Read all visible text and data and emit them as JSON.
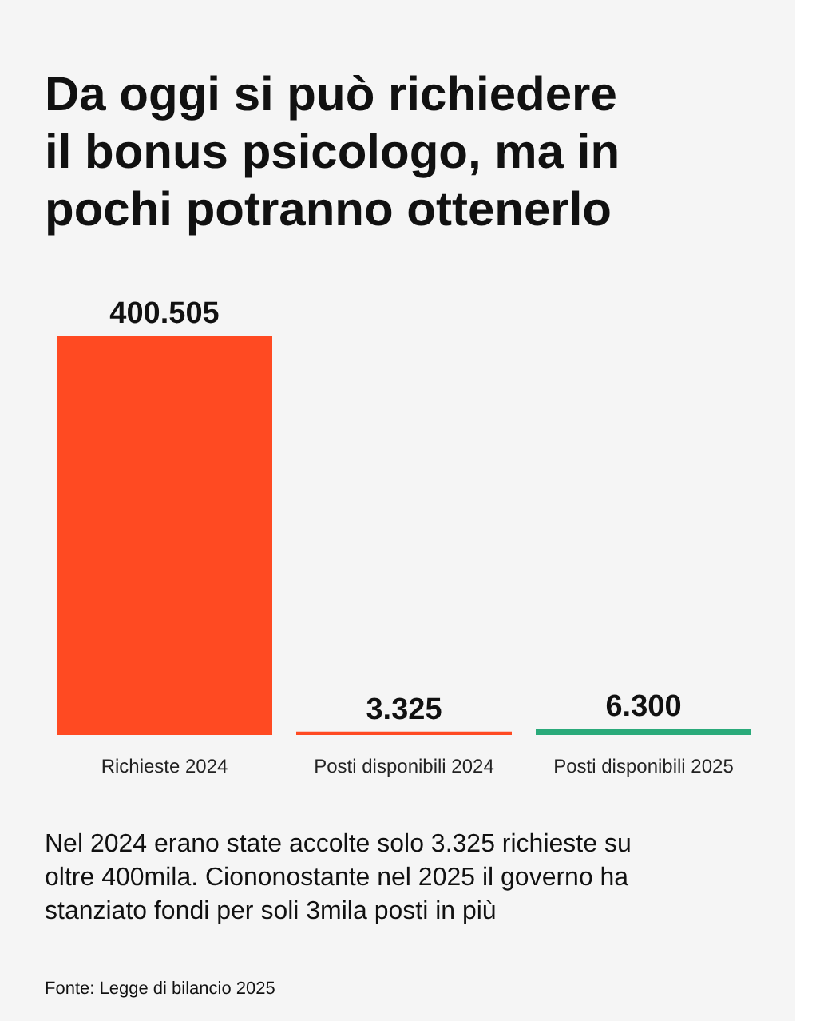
{
  "chart_data": {
    "type": "bar",
    "title": "Da oggi si può richiedere il bonus psicologo, ma in pochi potranno ottenerlo",
    "categories": [
      "Richieste 2024",
      "Posti disponibili 2024",
      "Posti disponibili 2025"
    ],
    "values": [
      400505,
      3325,
      6300
    ],
    "colors": [
      "#ff4a22",
      "#ff4a22",
      "#2aaa7a"
    ],
    "value_labels": [
      "400.505",
      "3.325",
      "6.300"
    ],
    "annotations": [
      "Nel 2024 erano state accolte solo 3.325 richieste su oltre 400mila. Ciononostante nel 2025 il governo ha stanziato fondi per soli 3mila posti in più",
      "Fonte: Legge di bilancio 2025"
    ]
  }
}
